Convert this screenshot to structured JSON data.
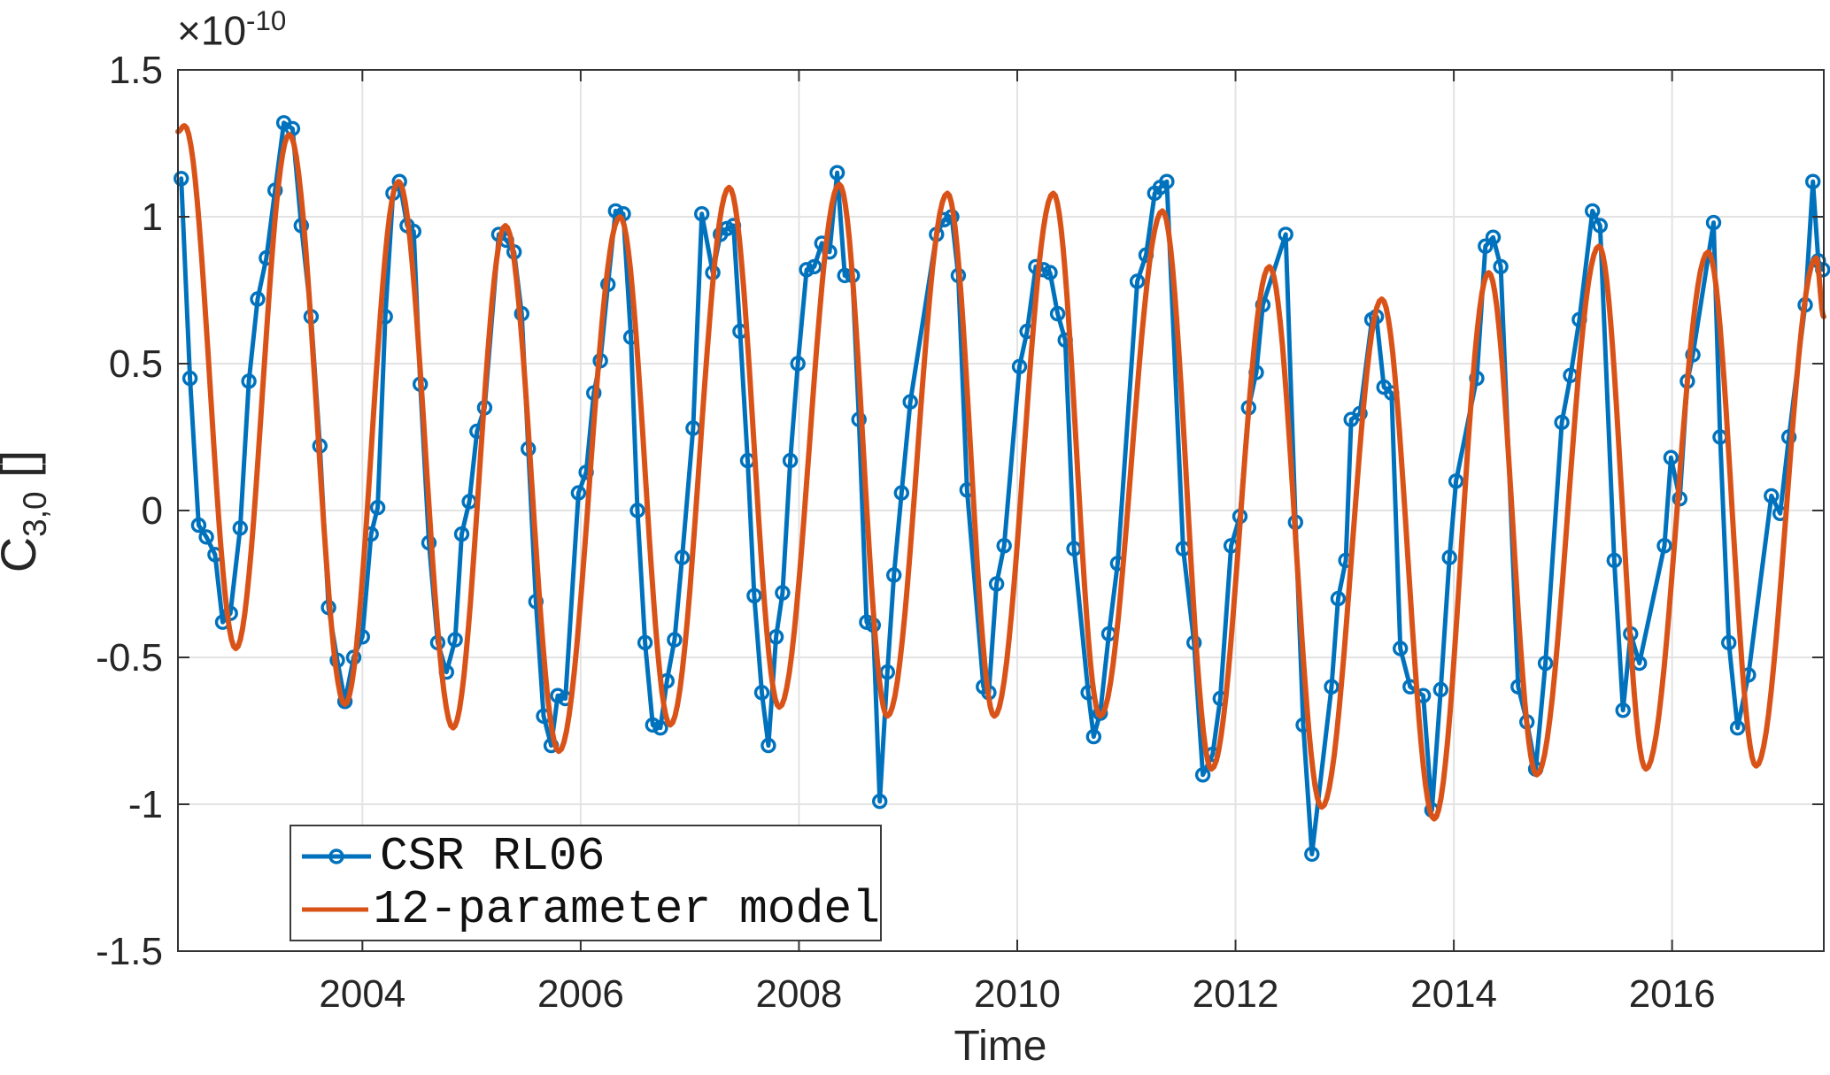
{
  "axes": {
    "xlabel": "Time",
    "ylabel": {
      "base": "C",
      "sub": "3,0",
      "suffix": " []"
    },
    "exponent": {
      "base": "×10",
      "sup": "-10"
    },
    "xlim": [
      2002.31,
      2017.39
    ],
    "ylim": [
      -1.5,
      1.5
    ],
    "xticks": [
      {
        "v": 2004,
        "label": "2004"
      },
      {
        "v": 2006,
        "label": "2006"
      },
      {
        "v": 2008,
        "label": "2008"
      },
      {
        "v": 2010,
        "label": "2010"
      },
      {
        "v": 2012,
        "label": "2012"
      },
      {
        "v": 2014,
        "label": "2014"
      },
      {
        "v": 2016,
        "label": "2016"
      }
    ],
    "yticks": [
      {
        "v": -1.5,
        "label": "-1.5"
      },
      {
        "v": -1,
        "label": "-1"
      },
      {
        "v": -0.5,
        "label": "-0.5"
      },
      {
        "v": 0,
        "label": "0"
      },
      {
        "v": 0.5,
        "label": "0.5"
      },
      {
        "v": 1,
        "label": "1"
      },
      {
        "v": 1.5,
        "label": "1.5"
      }
    ],
    "grid": true,
    "colors": {
      "axis": "#333333",
      "grid": "#e3e3e3",
      "tick_label": "#262626"
    }
  },
  "chart_data": {
    "type": "line",
    "title": "",
    "xlabel": "Time",
    "ylabel": "C_{3,0} []",
    "y_scale_exponent": "x10^-10",
    "xlim": [
      2002.31,
      2017.39
    ],
    "ylim": [
      -1.5,
      1.5
    ],
    "grid": true,
    "legend_position": "southwest",
    "series": [
      {
        "name": "CSR RL06",
        "color": "#0072BD",
        "marker": "o",
        "smooth": false,
        "points": [
          [
            2002.34,
            1.13
          ],
          [
            2002.42,
            0.45
          ],
          [
            2002.5,
            -0.05
          ],
          [
            2002.57,
            -0.09
          ],
          [
            2002.65,
            -0.15
          ],
          [
            2002.72,
            -0.38
          ],
          [
            2002.79,
            -0.35
          ],
          [
            2002.88,
            -0.06
          ],
          [
            2002.96,
            0.44
          ],
          [
            2003.04,
            0.72
          ],
          [
            2003.12,
            0.86
          ],
          [
            2003.2,
            1.09
          ],
          [
            2003.28,
            1.32
          ],
          [
            2003.36,
            1.3
          ],
          [
            2003.44,
            0.97
          ],
          [
            2003.53,
            0.66
          ],
          [
            2003.61,
            0.22
          ],
          [
            2003.69,
            -0.33
          ],
          [
            2003.77,
            -0.51
          ],
          [
            2003.84,
            -0.65
          ],
          [
            2003.92,
            -0.5
          ],
          [
            2004.0,
            -0.43
          ],
          [
            2004.08,
            -0.08
          ],
          [
            2004.14,
            0.01
          ],
          [
            2004.21,
            0.66
          ],
          [
            2004.28,
            1.08
          ],
          [
            2004.34,
            1.12
          ],
          [
            2004.41,
            0.97
          ],
          [
            2004.47,
            0.95
          ],
          [
            2004.53,
            0.43
          ],
          [
            2004.61,
            -0.11
          ],
          [
            2004.69,
            -0.45
          ],
          [
            2004.77,
            -0.55
          ],
          [
            2004.85,
            -0.44
          ],
          [
            2004.91,
            -0.08
          ],
          [
            2004.98,
            0.03
          ],
          [
            2005.05,
            0.27
          ],
          [
            2005.12,
            0.35
          ],
          [
            2005.25,
            0.94
          ],
          [
            2005.32,
            0.92
          ],
          [
            2005.39,
            0.88
          ],
          [
            2005.46,
            0.67
          ],
          [
            2005.52,
            0.21
          ],
          [
            2005.59,
            -0.31
          ],
          [
            2005.66,
            -0.7
          ],
          [
            2005.73,
            -0.8
          ],
          [
            2005.79,
            -0.63
          ],
          [
            2005.86,
            -0.64
          ],
          [
            2005.98,
            0.06
          ],
          [
            2006.05,
            0.13
          ],
          [
            2006.12,
            0.4
          ],
          [
            2006.18,
            0.51
          ],
          [
            2006.25,
            0.77
          ],
          [
            2006.32,
            1.02
          ],
          [
            2006.39,
            1.01
          ],
          [
            2006.46,
            0.59
          ],
          [
            2006.52,
            0.0
          ],
          [
            2006.59,
            -0.45
          ],
          [
            2006.66,
            -0.73
          ],
          [
            2006.73,
            -0.74
          ],
          [
            2006.79,
            -0.58
          ],
          [
            2006.86,
            -0.44
          ],
          [
            2006.93,
            -0.16
          ],
          [
            2007.03,
            0.28
          ],
          [
            2007.11,
            1.01
          ],
          [
            2007.21,
            0.81
          ],
          [
            2007.28,
            0.94
          ],
          [
            2007.34,
            0.96
          ],
          [
            2007.4,
            0.97
          ],
          [
            2007.46,
            0.61
          ],
          [
            2007.53,
            0.17
          ],
          [
            2007.59,
            -0.29
          ],
          [
            2007.66,
            -0.62
          ],
          [
            2007.72,
            -0.8
          ],
          [
            2007.79,
            -0.43
          ],
          [
            2007.85,
            -0.28
          ],
          [
            2007.92,
            0.17
          ],
          [
            2007.99,
            0.5
          ],
          [
            2008.07,
            0.82
          ],
          [
            2008.14,
            0.83
          ],
          [
            2008.21,
            0.91
          ],
          [
            2008.28,
            0.88
          ],
          [
            2008.35,
            1.15
          ],
          [
            2008.42,
            0.8
          ],
          [
            2008.49,
            0.8
          ],
          [
            2008.55,
            0.31
          ],
          [
            2008.62,
            -0.38
          ],
          [
            2008.68,
            -0.39
          ],
          [
            2008.74,
            -0.99
          ],
          [
            2008.81,
            -0.55
          ],
          [
            2008.87,
            -0.22
          ],
          [
            2008.94,
            0.06
          ],
          [
            2009.02,
            0.37
          ],
          [
            2009.26,
            0.94
          ],
          [
            2009.33,
            0.99
          ],
          [
            2009.4,
            1.0
          ],
          [
            2009.46,
            0.8
          ],
          [
            2009.54,
            0.07
          ],
          [
            2009.69,
            -0.6
          ],
          [
            2009.74,
            -0.62
          ],
          [
            2009.81,
            -0.25
          ],
          [
            2009.88,
            -0.12
          ],
          [
            2010.02,
            0.49
          ],
          [
            2010.09,
            0.61
          ],
          [
            2010.17,
            0.83
          ],
          [
            2010.24,
            0.82
          ],
          [
            2010.3,
            0.81
          ],
          [
            2010.37,
            0.67
          ],
          [
            2010.44,
            0.58
          ],
          [
            2010.52,
            -0.13
          ],
          [
            2010.65,
            -0.62
          ],
          [
            2010.7,
            -0.77
          ],
          [
            2010.76,
            -0.69
          ],
          [
            2010.84,
            -0.42
          ],
          [
            2010.92,
            -0.18
          ],
          [
            2011.1,
            0.78
          ],
          [
            2011.18,
            0.87
          ],
          [
            2011.26,
            1.08
          ],
          [
            2011.31,
            1.1
          ],
          [
            2011.37,
            1.12
          ],
          [
            2011.52,
            -0.13
          ],
          [
            2011.62,
            -0.45
          ],
          [
            2011.7,
            -0.9
          ],
          [
            2011.79,
            -0.83
          ],
          [
            2011.86,
            -0.64
          ],
          [
            2011.96,
            -0.12
          ],
          [
            2012.04,
            -0.02
          ],
          [
            2012.12,
            0.35
          ],
          [
            2012.19,
            0.47
          ],
          [
            2012.25,
            0.7
          ],
          [
            2012.46,
            0.94
          ],
          [
            2012.55,
            -0.04
          ],
          [
            2012.62,
            -0.73
          ],
          [
            2012.7,
            -1.17
          ],
          [
            2012.88,
            -0.6
          ],
          [
            2012.94,
            -0.3
          ],
          [
            2013.01,
            -0.17
          ],
          [
            2013.06,
            0.31
          ],
          [
            2013.14,
            0.33
          ],
          [
            2013.25,
            0.65
          ],
          [
            2013.29,
            0.66
          ],
          [
            2013.36,
            0.42
          ],
          [
            2013.43,
            0.4
          ],
          [
            2013.51,
            -0.47
          ],
          [
            2013.6,
            -0.6
          ],
          [
            2013.72,
            -0.63
          ],
          [
            2013.8,
            -1.02
          ],
          [
            2013.88,
            -0.61
          ],
          [
            2013.96,
            -0.16
          ],
          [
            2014.02,
            0.1
          ],
          [
            2014.21,
            0.45
          ],
          [
            2014.29,
            0.9
          ],
          [
            2014.36,
            0.93
          ],
          [
            2014.43,
            0.83
          ],
          [
            2014.59,
            -0.6
          ],
          [
            2014.67,
            -0.72
          ],
          [
            2014.75,
            -0.88
          ],
          [
            2014.84,
            -0.52
          ],
          [
            2014.99,
            0.3
          ],
          [
            2015.07,
            0.46
          ],
          [
            2015.15,
            0.65
          ],
          [
            2015.27,
            1.02
          ],
          [
            2015.34,
            0.97
          ],
          [
            2015.47,
            -0.17
          ],
          [
            2015.55,
            -0.68
          ],
          [
            2015.62,
            -0.42
          ],
          [
            2015.7,
            -0.52
          ],
          [
            2015.93,
            -0.12
          ],
          [
            2015.99,
            0.18
          ],
          [
            2016.07,
            0.04
          ],
          [
            2016.14,
            0.44
          ],
          [
            2016.19,
            0.53
          ],
          [
            2016.38,
            0.98
          ],
          [
            2016.44,
            0.25
          ],
          [
            2016.52,
            -0.45
          ],
          [
            2016.6,
            -0.74
          ],
          [
            2016.7,
            -0.56
          ],
          [
            2016.91,
            0.05
          ],
          [
            2016.99,
            -0.01
          ],
          [
            2017.07,
            0.25
          ],
          [
            2017.22,
            0.7
          ],
          [
            2017.29,
            1.12
          ],
          [
            2017.34,
            0.85
          ],
          [
            2017.38,
            0.82
          ]
        ]
      },
      {
        "name": "12-parameter model",
        "color": "#D95319",
        "marker": "none",
        "smooth": true,
        "points": [
          [
            2002.31,
            1.29
          ],
          [
            2002.37,
            1.31
          ],
          [
            2002.84,
            -0.47
          ],
          [
            2003.33,
            1.28
          ],
          [
            2003.84,
            -0.66
          ],
          [
            2004.33,
            1.12
          ],
          [
            2004.83,
            -0.74
          ],
          [
            2005.31,
            0.97
          ],
          [
            2005.8,
            -0.82
          ],
          [
            2006.36,
            1.0
          ],
          [
            2006.82,
            -0.73
          ],
          [
            2007.36,
            1.1
          ],
          [
            2007.82,
            -0.67
          ],
          [
            2008.37,
            1.11
          ],
          [
            2008.81,
            -0.7
          ],
          [
            2009.36,
            1.08
          ],
          [
            2009.79,
            -0.7
          ],
          [
            2010.33,
            1.08
          ],
          [
            2010.76,
            -0.7
          ],
          [
            2011.33,
            1.02
          ],
          [
            2011.78,
            -0.88
          ],
          [
            2012.31,
            0.83
          ],
          [
            2012.79,
            -1.01
          ],
          [
            2013.34,
            0.72
          ],
          [
            2013.82,
            -1.05
          ],
          [
            2014.32,
            0.81
          ],
          [
            2014.76,
            -0.9
          ],
          [
            2015.33,
            0.9
          ],
          [
            2015.76,
            -0.88
          ],
          [
            2016.33,
            0.88
          ],
          [
            2016.77,
            -0.87
          ],
          [
            2017.32,
            0.86
          ],
          [
            2017.39,
            0.66
          ]
        ]
      }
    ]
  },
  "legend": {
    "entries": [
      {
        "label": "CSR RL06",
        "color": "#0072BD",
        "marker": "circle"
      },
      {
        "label": "12-parameter model",
        "color": "#D95319",
        "marker": "none"
      }
    ]
  }
}
